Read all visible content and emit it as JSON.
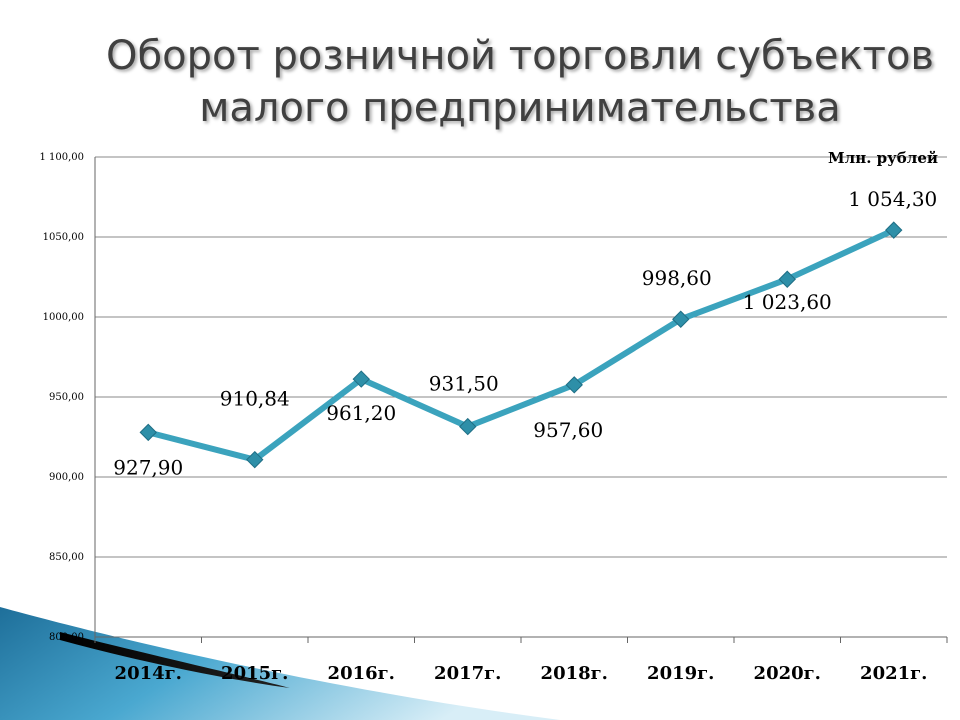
{
  "title": {
    "line1": "Оборот розничной торговли субъектов",
    "line2": "малого предпринимательства"
  },
  "chart_data": {
    "type": "line",
    "title": "Оборот розничной торговли субъектов малого предпринимательства",
    "unit": "Млн. рублей",
    "categories": [
      "2014г.",
      "2015г.",
      "2016г.",
      "2017г.",
      "2018г.",
      "2019г.",
      "2020г.",
      "2021г."
    ],
    "values": [
      927.9,
      910.84,
      961.2,
      931.5,
      957.6,
      998.6,
      1023.6,
      1054.3
    ],
    "data_labels": [
      "927,90",
      "910,84",
      "961,20",
      "931,50",
      "957,60",
      "998,60",
      "1 023,60",
      "1 054,30"
    ],
    "ylim": [
      800,
      1100
    ],
    "yticks": [
      800,
      850,
      900,
      950,
      1000,
      1050,
      1100
    ],
    "ytick_labels": [
      "800,00",
      "850,00",
      "900,00",
      "950,00",
      "1000,00",
      "1050,00",
      "1 100,00"
    ],
    "grid": true,
    "line_color": "#3BA3BD",
    "marker_color": "#2E8FA8"
  }
}
